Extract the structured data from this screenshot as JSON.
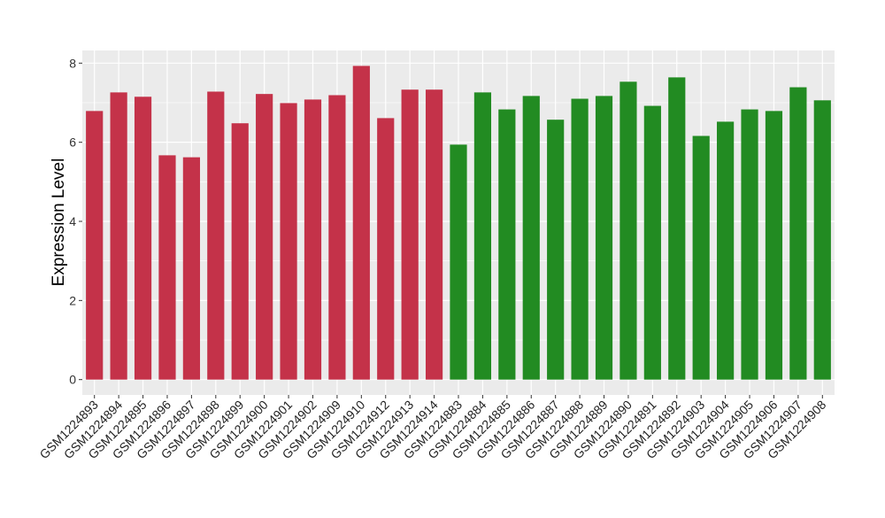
{
  "chart_data": {
    "type": "bar",
    "title": "",
    "xlabel": "",
    "ylabel": "Expression Level",
    "ylim": [
      -0.4,
      8.3
    ],
    "yticks": [
      0,
      2,
      4,
      6,
      8
    ],
    "grid": true,
    "legend": "none",
    "categories": [
      "GSM1224893",
      "GSM1224894",
      "GSM1224895",
      "GSM1224896",
      "GSM1224897",
      "GSM1224898",
      "GSM1224899",
      "GSM1224900",
      "GSM1224901",
      "GSM1224902",
      "GSM1224909",
      "GSM1224910",
      "GSM1224912",
      "GSM1224913",
      "GSM1224914",
      "GSM1224883",
      "GSM1224884",
      "GSM1224885",
      "GSM1224886",
      "GSM1224887",
      "GSM1224888",
      "GSM1224889",
      "GSM1224890",
      "GSM1224891",
      "GSM1224892",
      "GSM1224903",
      "GSM1224904",
      "GSM1224905",
      "GSM1224906",
      "GSM1224907",
      "GSM1224908"
    ],
    "values": [
      6.79,
      7.26,
      7.15,
      5.67,
      5.62,
      7.28,
      6.48,
      7.22,
      6.99,
      7.08,
      7.19,
      7.93,
      6.61,
      7.33,
      7.33,
      5.94,
      7.26,
      6.83,
      7.17,
      6.57,
      7.1,
      7.17,
      7.53,
      6.92,
      7.64,
      6.16,
      6.52,
      6.83,
      6.79,
      7.39,
      7.06
    ],
    "groups": [
      "red",
      "red",
      "red",
      "red",
      "red",
      "red",
      "red",
      "red",
      "red",
      "red",
      "red",
      "red",
      "red",
      "red",
      "red",
      "green",
      "green",
      "green",
      "green",
      "green",
      "green",
      "green",
      "green",
      "green",
      "green",
      "green",
      "green",
      "green",
      "green",
      "green",
      "green"
    ],
    "colors": {
      "red": "#C43249",
      "green": "#228B22",
      "panel": "#EBEBEB",
      "grid": "#FFFFFF"
    }
  }
}
